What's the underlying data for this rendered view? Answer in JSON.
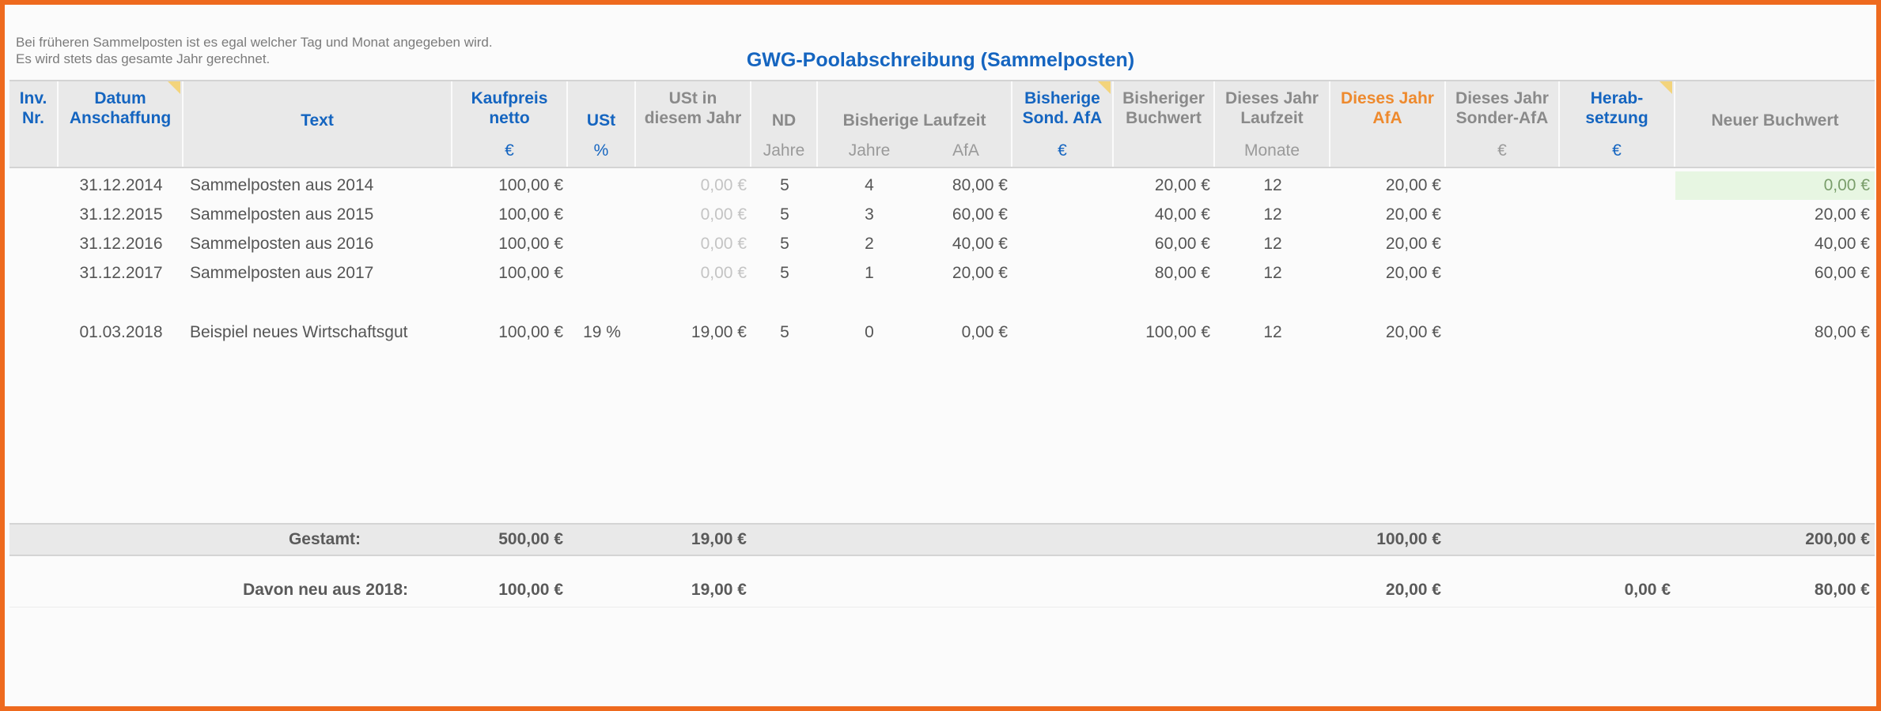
{
  "notes": {
    "line1": "Bei früheren Sammelposten ist es egal welcher Tag und Monat angegeben wird.",
    "line2": "Es wird stets das gesamte Jahr gerechnet."
  },
  "title": "GWG-Poolabschreibung (Sammelposten)",
  "headers": {
    "inv_nr": "Inv.\nNr.",
    "datum": "Datum\nAnschaffung",
    "text": "Text",
    "kaufpreis": "Kaufpreis\nnetto",
    "ust": "USt",
    "ust_jahr": "USt in\ndiesem Jahr",
    "nd": "ND",
    "bisherige_laufzeit": "Bisherige Laufzeit",
    "bisherige_sond_afa": "Bisherige\nSond. AfA",
    "bisheriger_buchwert": "Bisheriger\nBuchwert",
    "dieses_jahr_laufzeit": "Dieses Jahr\nLaufzeit",
    "dieses_jahr_afa": "Dieses Jahr\nAfA",
    "dieses_jahr_sonder_afa": "Dieses Jahr\nSonder-AfA",
    "herabsetzung": "Herab-\nsetzung",
    "neuer_buchwert": "Neuer Buchwert"
  },
  "units": {
    "kaufpreis": "€",
    "ust": "%",
    "nd": "Jahre",
    "laufzeit_jahre": "Jahre",
    "laufzeit_afa": "AfA",
    "sond_afa": "€",
    "dj_laufzeit": "Monate",
    "dj_sonder_afa": "€",
    "herabsetzung": "€"
  },
  "rows": [
    {
      "datum": "31.12.2014",
      "text": "Sammelposten aus 2014",
      "kaufpreis": "100,00 €",
      "ust": "",
      "ust_jahr": "0,00 €",
      "nd": "5",
      "jahre": "4",
      "afa": "80,00 €",
      "sond_afa": "",
      "buchwert": "20,00 €",
      "laufzeit": "12",
      "dj_afa": "20,00 €",
      "sonder_afa": "",
      "herab": "",
      "neuer": "0,00 €"
    },
    {
      "datum": "31.12.2015",
      "text": "Sammelposten aus 2015",
      "kaufpreis": "100,00 €",
      "ust": "",
      "ust_jahr": "0,00 €",
      "nd": "5",
      "jahre": "3",
      "afa": "60,00 €",
      "sond_afa": "",
      "buchwert": "40,00 €",
      "laufzeit": "12",
      "dj_afa": "20,00 €",
      "sonder_afa": "",
      "herab": "",
      "neuer": "20,00 €"
    },
    {
      "datum": "31.12.2016",
      "text": "Sammelposten aus 2016",
      "kaufpreis": "100,00 €",
      "ust": "",
      "ust_jahr": "0,00 €",
      "nd": "5",
      "jahre": "2",
      "afa": "40,00 €",
      "sond_afa": "",
      "buchwert": "60,00 €",
      "laufzeit": "12",
      "dj_afa": "20,00 €",
      "sonder_afa": "",
      "herab": "",
      "neuer": "40,00 €"
    },
    {
      "datum": "31.12.2017",
      "text": "Sammelposten aus 2017",
      "kaufpreis": "100,00 €",
      "ust": "",
      "ust_jahr": "0,00 €",
      "nd": "5",
      "jahre": "1",
      "afa": "20,00 €",
      "sond_afa": "",
      "buchwert": "80,00 €",
      "laufzeit": "12",
      "dj_afa": "20,00 €",
      "sonder_afa": "",
      "herab": "",
      "neuer": "60,00 €"
    },
    {
      "datum": "01.03.2018",
      "text": "Beispiel neues Wirtschaftsgut",
      "kaufpreis": "100,00 €",
      "ust": "19 %",
      "ust_jahr": "19,00 €",
      "nd": "5",
      "jahre": "0",
      "afa": "0,00 €",
      "sond_afa": "",
      "buchwert": "100,00 €",
      "laufzeit": "12",
      "dj_afa": "20,00 €",
      "sonder_afa": "",
      "herab": "",
      "neuer": "80,00 €"
    }
  ],
  "totals": {
    "label": "Gestamt:",
    "kaufpreis": "500,00 €",
    "ust_jahr": "19,00 €",
    "dj_afa": "100,00 €",
    "neuer": "200,00 €"
  },
  "new_this_year": {
    "label": "Davon neu aus 2018:",
    "kaufpreis": "100,00 €",
    "ust_jahr": "19,00 €",
    "dj_afa": "20,00 €",
    "herab": "0,00 €",
    "neuer": "80,00 €"
  }
}
